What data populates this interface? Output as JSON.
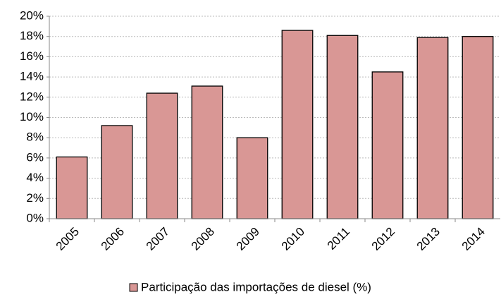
{
  "chart_data": {
    "type": "bar",
    "categories": [
      "2005",
      "2006",
      "2007",
      "2008",
      "2009",
      "2010",
      "2011",
      "2012",
      "2013",
      "2014"
    ],
    "series": [
      {
        "name": "Participação das importações de diesel (%)",
        "color": "#d99795",
        "values": [
          6.1,
          9.2,
          12.4,
          13.1,
          8.0,
          18.6,
          18.1,
          14.5,
          17.9,
          18.0
        ]
      }
    ],
    "ylim": [
      0,
      20
    ],
    "yticks": [
      {
        "value": 0,
        "label": "0%"
      },
      {
        "value": 2,
        "label": "2%"
      },
      {
        "value": 4,
        "label": "4%"
      },
      {
        "value": 6,
        "label": "6%"
      },
      {
        "value": 8,
        "label": "8%"
      },
      {
        "value": 10,
        "label": "10%"
      },
      {
        "value": 12,
        "label": "12%"
      },
      {
        "value": 14,
        "label": "14%"
      },
      {
        "value": 16,
        "label": "16%"
      },
      {
        "value": 18,
        "label": "18%"
      },
      {
        "value": 20,
        "label": "20%"
      }
    ],
    "grid": true,
    "legend": "bottom"
  }
}
